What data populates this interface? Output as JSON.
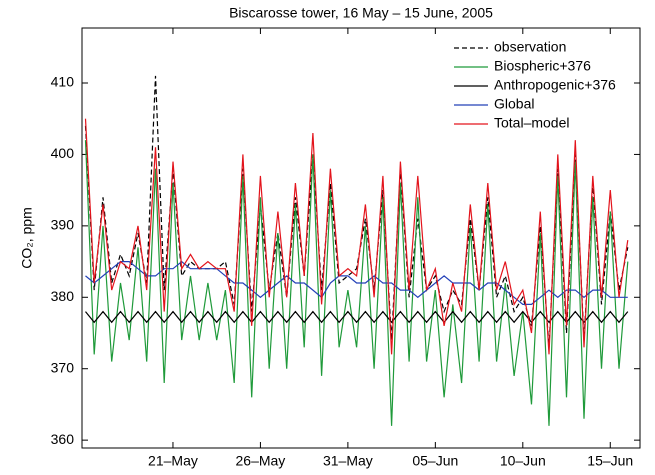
{
  "chart_data": {
    "type": "line",
    "title": "Biscarosse tower, 16 May – 15 June, 2005",
    "y_label": "CO₂, ppm",
    "x": [
      0,
      0.5,
      1,
      1.5,
      2,
      2.5,
      3,
      3.5,
      4,
      4.5,
      5,
      5.5,
      6,
      6.5,
      7,
      7.5,
      8,
      8.5,
      9,
      9.5,
      10,
      10.5,
      11,
      11.5,
      12,
      12.5,
      13,
      13.5,
      14,
      14.5,
      15,
      15.5,
      16,
      16.5,
      17,
      17.5,
      18,
      18.5,
      19,
      19.5,
      20,
      20.5,
      21,
      21.5,
      22,
      22.5,
      23,
      23.5,
      24,
      24.5,
      25,
      25.5,
      26,
      26.5,
      27,
      27.5,
      28,
      28.5,
      29,
      29.5,
      30,
      30.5,
      31
    ],
    "xlim": [
      -0.2,
      31.7
    ],
    "xticks": [
      {
        "value": 5,
        "label": "21–May"
      },
      {
        "value": 10,
        "label": "26–May"
      },
      {
        "value": 15,
        "label": "31–May"
      },
      {
        "value": 20,
        "label": "05–Jun"
      },
      {
        "value": 25,
        "label": "10–Jun"
      },
      {
        "value": 30,
        "label": "15–Jun"
      }
    ],
    "ylim": [
      358.9,
      417.7
    ],
    "yticks": [
      360,
      370,
      380,
      390,
      400,
      410
    ],
    "legend": "upper right",
    "series": [
      {
        "name": "observation",
        "color": "#000000",
        "style": "dashed",
        "values": [
          404,
          381,
          394,
          382,
          386,
          383,
          389,
          382,
          411,
          381,
          398,
          383,
          385,
          384,
          384,
          384,
          385,
          379,
          398,
          378,
          393,
          381,
          389,
          380,
          394,
          383,
          400,
          381,
          396,
          382,
          383,
          384,
          391,
          381,
          395,
          374,
          398,
          380,
          391,
          381,
          383,
          378,
          381,
          379,
          391,
          381,
          394,
          380,
          383,
          378,
          380,
          376,
          390,
          373,
          398,
          375,
          400,
          374,
          396,
          379,
          392,
          381,
          387
        ]
      },
      {
        "name": "Biospheric+376",
        "color": "#1f9a3a",
        "style": "solid",
        "values": [
          402,
          372,
          390,
          371,
          382,
          374,
          387,
          371,
          398,
          368,
          396,
          374,
          383,
          374,
          382,
          374,
          381,
          368,
          397,
          366,
          394,
          370,
          389,
          370,
          393,
          373,
          400,
          369,
          395,
          373,
          381,
          373,
          390,
          370,
          394,
          362,
          396,
          371,
          394,
          371,
          381,
          366,
          379,
          368,
          390,
          371,
          393,
          371,
          382,
          369,
          378,
          365,
          389,
          362,
          397,
          366,
          399,
          363,
          394,
          370,
          392,
          370,
          385
        ]
      },
      {
        "name": "Anthropogenic+376",
        "color": "#000000",
        "style": "solid",
        "values": [
          378,
          376.5,
          378,
          376.5,
          378,
          376.5,
          378,
          376.5,
          378,
          376.5,
          378,
          376.5,
          378,
          376.5,
          378,
          376.5,
          378,
          376.5,
          378,
          376.5,
          378,
          376.5,
          378,
          376.5,
          378,
          376.5,
          378,
          376.5,
          378,
          376.5,
          378,
          376.5,
          378,
          376.5,
          378,
          376.5,
          378,
          376.5,
          378,
          376.5,
          378,
          376.5,
          378,
          376.5,
          378,
          376.5,
          378,
          376.5,
          378,
          376.5,
          378,
          376.5,
          378,
          376.5,
          378,
          376.5,
          378,
          376.5,
          378,
          376.5,
          378,
          376.5,
          378
        ]
      },
      {
        "name": "Global",
        "color": "#2340b8",
        "style": "solid",
        "values": [
          383,
          382,
          383,
          384,
          385,
          385,
          384,
          383,
          383,
          384,
          384,
          385,
          384,
          384,
          384,
          384,
          383,
          382,
          382,
          381,
          380,
          381,
          382,
          383,
          382,
          382,
          381,
          380,
          382,
          383,
          383,
          382,
          382,
          383,
          382,
          382,
          381,
          381,
          380,
          381,
          382,
          383,
          382,
          382,
          382,
          381,
          382,
          382,
          381,
          380,
          379,
          379,
          380,
          381,
          380,
          381,
          381,
          380,
          381,
          381,
          380,
          380,
          380
        ]
      },
      {
        "name": "Total–model",
        "color": "#e3141c",
        "style": "solid",
        "values": [
          405,
          382,
          393,
          381,
          385,
          384,
          390,
          381,
          401,
          378,
          399,
          384,
          386,
          384,
          385,
          384,
          384,
          378,
          400,
          376,
          397,
          380,
          392,
          380,
          396,
          383,
          403,
          379,
          398,
          383,
          384,
          383,
          393,
          380,
          397,
          372,
          399,
          381,
          397,
          381,
          384,
          376,
          382,
          378,
          393,
          381,
          396,
          381,
          385,
          379,
          381,
          375,
          392,
          372,
          400,
          376,
          402,
          373,
          397,
          380,
          395,
          380,
          388
        ]
      }
    ]
  }
}
